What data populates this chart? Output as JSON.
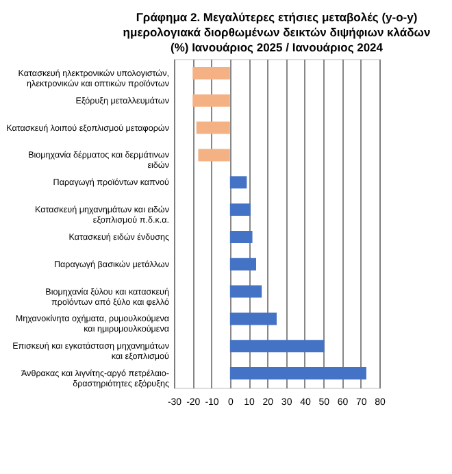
{
  "chart_data": {
    "type": "bar",
    "orientation": "horizontal",
    "title": "Γράφημα 2. Μεγαλύτερες ετήσιες μεταβολές (y-o-y) ημερολογιακά διορθωμένων δεικτών διψήφιων κλάδων (%) Ιανουάριος 2025 / Ιανουάριος 2024",
    "categories": [
      "Κατασκευή ηλεκτρονικών υπολογιστών, ηλεκτρονικών και οπτικών προϊόντων",
      "Εξόρυξη μεταλλευμάτων",
      "Κατασκευή λοιπού εξοπλισμού μεταφορών",
      "Βιομηχανία δέρματος και δερμάτινων ειδών",
      "Παραγωγή προϊόντων καπνού",
      "Κατασκευή μηχανημάτων και ειδών εξοπλισμού π.δ.κ.α.",
      "Κατασκευή ειδών ένδυσης",
      "Παραγωγή βασικών μετάλλων",
      "Βιομηχανία ξύλου και κατασκευή προϊόντων από ξύλο και φελλό",
      "Μηχανοκίνητα οχήματα, ρυμουλκούμενα και ημιρυμουλκούμενα",
      "Επισκευή και εγκατάσταση μηχανημάτων και εξοπλισμού",
      "Άνθρακας και λιγνίτης-αργό πετρέλαιο-δραστηριότητες εξόρυξης"
    ],
    "values": [
      -20,
      -20,
      -18,
      -17,
      9,
      11,
      12,
      14,
      17,
      25,
      50.5,
      73
    ],
    "colors": [
      "#f4b183",
      "#f4b183",
      "#f4b183",
      "#f4b183",
      "#4472c4",
      "#4472c4",
      "#4472c4",
      "#4472c4",
      "#4472c4",
      "#4472c4",
      "#4472c4",
      "#4472c4"
    ],
    "xlim": [
      -30,
      80
    ],
    "xticks": [
      -30,
      -20,
      -10,
      0,
      10,
      20,
      30,
      40,
      50,
      60,
      70,
      80
    ],
    "grid": "x"
  }
}
